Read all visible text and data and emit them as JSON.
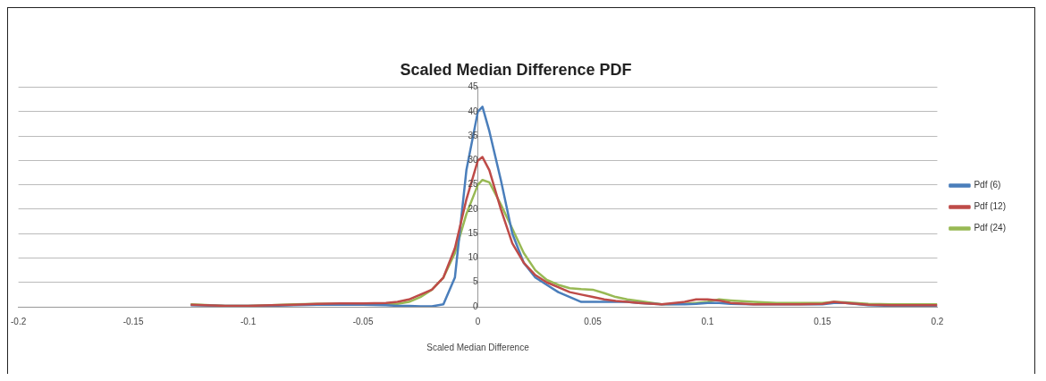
{
  "chart_data": {
    "type": "line",
    "title": "Scaled Median Difference PDF",
    "xlabel": "Scaled Median Difference",
    "x": [
      -0.125,
      -0.11,
      -0.1,
      -0.09,
      -0.08,
      -0.07,
      -0.06,
      -0.05,
      -0.04,
      -0.035,
      -0.03,
      -0.025,
      -0.02,
      -0.015,
      -0.01,
      -0.005,
      0,
      0.002,
      0.005,
      0.01,
      0.015,
      0.02,
      0.025,
      0.03,
      0.035,
      0.04,
      0.045,
      0.05,
      0.055,
      0.06,
      0.065,
      0.07,
      0.08,
      0.09,
      0.095,
      0.1,
      0.105,
      0.11,
      0.12,
      0.13,
      0.14,
      0.15,
      0.155,
      0.16,
      0.17,
      0.18,
      0.19,
      0.2
    ],
    "series": [
      {
        "name": "Pdf (6)",
        "color": "#4a7ebb",
        "values": [
          0.3,
          0.2,
          0.2,
          0.2,
          0.3,
          0.4,
          0.4,
          0.4,
          0.3,
          0.2,
          0.2,
          0.1,
          0.1,
          0.5,
          6,
          28,
          40,
          41,
          36,
          26,
          15,
          9,
          6,
          4.5,
          3,
          2,
          1,
          1,
          1,
          1,
          1,
          0.8,
          0.5,
          0.5,
          0.6,
          0.8,
          0.8,
          0.6,
          0.5,
          0.5,
          0.5,
          0.5,
          0.8,
          0.8,
          0.3,
          0.2,
          0.1,
          0.1
        ]
      },
      {
        "name": "Pdf (12)",
        "color": "#be4b48",
        "values": [
          0.4,
          0.2,
          0.2,
          0.3,
          0.4,
          0.6,
          0.7,
          0.7,
          0.8,
          1,
          1.5,
          2.5,
          3.5,
          6,
          12,
          22,
          30,
          30.7,
          28,
          20,
          13,
          9,
          6.5,
          5,
          4,
          3,
          2.5,
          2,
          1.5,
          1.2,
          1,
          0.8,
          0.5,
          1,
          1.5,
          1.5,
          1.3,
          0.8,
          0.5,
          0.5,
          0.5,
          0.6,
          1,
          0.8,
          0.4,
          0.3,
          0.3,
          0.3
        ]
      },
      {
        "name": "Pdf (24)",
        "color": "#98b954",
        "values": [
          0.5,
          0.2,
          0.2,
          0.3,
          0.5,
          0.6,
          0.6,
          0.6,
          0.5,
          0.6,
          1,
          2,
          3.5,
          6,
          11,
          19,
          25,
          26,
          25.5,
          21,
          16,
          11,
          7.5,
          5.5,
          4.5,
          3.8,
          3.6,
          3.5,
          2.8,
          2,
          1.5,
          1.2,
          0.5,
          0.6,
          0.8,
          1,
          1.5,
          1.3,
          1,
          0.8,
          0.8,
          0.8,
          1,
          0.9,
          0.6,
          0.5,
          0.5,
          0.5
        ]
      }
    ],
    "xlim": [
      -0.2,
      0.2
    ],
    "xticks": [
      -0.2,
      -0.15,
      -0.1,
      -0.05,
      0,
      0.05,
      0.1,
      0.15,
      0.2
    ],
    "ylim": [
      0,
      45
    ],
    "yticks": [
      0,
      5,
      10,
      15,
      20,
      25,
      30,
      35,
      40,
      45
    ],
    "grid": "y",
    "legend": "right",
    "marker": "none",
    "line_style": "solid"
  }
}
